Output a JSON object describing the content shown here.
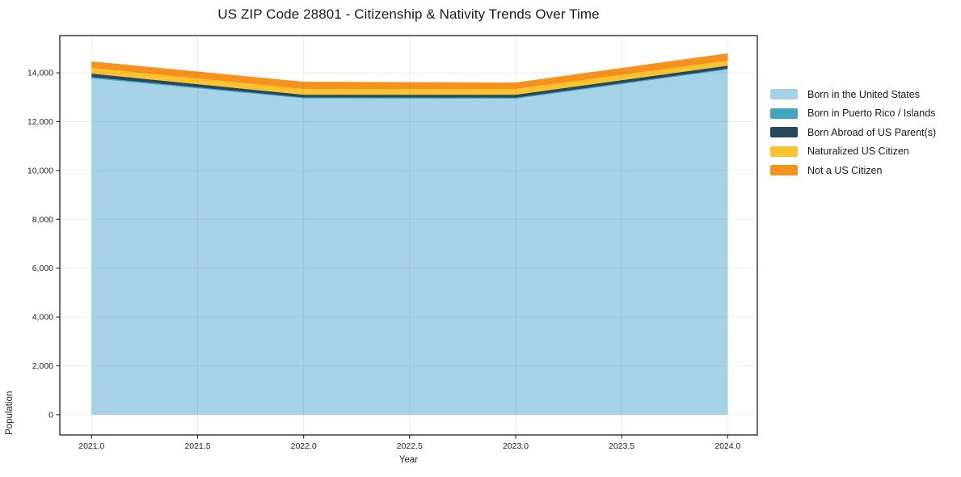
{
  "page": {
    "background": "#ffffff"
  },
  "chart_data": {
    "type": "area",
    "stacked": true,
    "title": "US ZIP Code 28801 - Citizenship & Nativity Trends Over Time",
    "xlabel": "Year",
    "ylabel": "Population",
    "x": [
      2021,
      2022,
      2023,
      2024
    ],
    "series": [
      {
        "name": "Born in the United States",
        "color": "#A6D2E7",
        "values": [
          13770,
          12950,
          12940,
          14130
        ]
      },
      {
        "name": "Born in Puerto Rico / Islands",
        "color": "#41A6C4",
        "values": [
          50,
          40,
          40,
          40
        ]
      },
      {
        "name": "Born Abroad of US Parent(s)",
        "color": "#27495C",
        "values": [
          150,
          115,
          125,
          125
        ]
      },
      {
        "name": "Naturalized US Citizen",
        "color": "#FCC32D",
        "values": [
          230,
          230,
          230,
          200
        ]
      },
      {
        "name": "Not a US Citizen",
        "color": "#F5921E",
        "values": [
          265,
          300,
          265,
          300
        ]
      }
    ],
    "x_ticks": [
      {
        "v": 2021.0,
        "label": "2021.0"
      },
      {
        "v": 2021.5,
        "label": "2021.5"
      },
      {
        "v": 2022.0,
        "label": "2022.0"
      },
      {
        "v": 2022.5,
        "label": "2022.5"
      },
      {
        "v": 2023.0,
        "label": "2023.0"
      },
      {
        "v": 2023.5,
        "label": "2023.5"
      },
      {
        "v": 2024.0,
        "label": "2024.0"
      }
    ],
    "y_ticks": [
      {
        "v": 0,
        "label": "0"
      },
      {
        "v": 2000,
        "label": "2,000"
      },
      {
        "v": 4000,
        "label": "4,000"
      },
      {
        "v": 6000,
        "label": "6,000"
      },
      {
        "v": 8000,
        "label": "8,000"
      },
      {
        "v": 10000,
        "label": "10,000"
      },
      {
        "v": 12000,
        "label": "12,000"
      },
      {
        "v": 14000,
        "label": "14,000"
      }
    ],
    "xlim": [
      2020.85,
      2024.14
    ],
    "ylim": [
      -830,
      15525
    ],
    "grid": true,
    "legend_position": "right"
  }
}
